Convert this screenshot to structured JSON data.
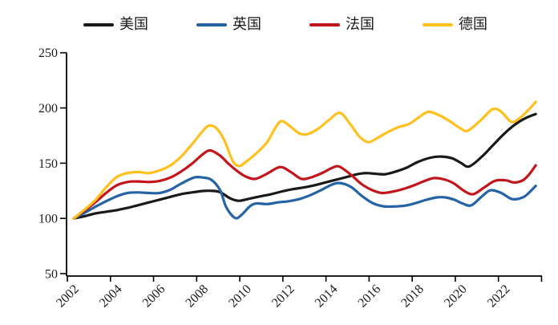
{
  "chart_data": {
    "type": "line",
    "title": "",
    "grid": false,
    "legend_position": "top",
    "x_axis": {
      "tick_labels": [
        "2002",
        "2004",
        "2006",
        "2008",
        "2010",
        "2012",
        "2014",
        "2016",
        "2018",
        "2020",
        "2022"
      ],
      "range": [
        2002,
        2024
      ]
    },
    "y_axis": {
      "ticks": [
        50,
        100,
        150,
        200,
        250
      ],
      "range": [
        50,
        250
      ]
    },
    "series": [
      {
        "key": "us",
        "name": "美国",
        "color": "#1a1a1a",
        "points": [
          [
            2002,
            100
          ],
          [
            2002.5,
            102
          ],
          [
            2003,
            104.5
          ],
          [
            2003.5,
            106
          ],
          [
            2004,
            107.5
          ],
          [
            2004.5,
            109.5
          ],
          [
            2005,
            112
          ],
          [
            2005.5,
            114.5
          ],
          [
            2006,
            117
          ],
          [
            2006.5,
            119.5
          ],
          [
            2007,
            122
          ],
          [
            2007.5,
            123.5
          ],
          [
            2008,
            124.8
          ],
          [
            2008.4,
            125
          ],
          [
            2008.8,
            123.8
          ],
          [
            2009.3,
            118
          ],
          [
            2009.7,
            116
          ],
          [
            2010.2,
            118
          ],
          [
            2010.7,
            120
          ],
          [
            2011.2,
            122
          ],
          [
            2011.7,
            124.5
          ],
          [
            2012.2,
            126.5
          ],
          [
            2012.7,
            128
          ],
          [
            2013.2,
            130
          ],
          [
            2013.7,
            132.5
          ],
          [
            2014.2,
            135
          ],
          [
            2014.7,
            137.5
          ],
          [
            2015.2,
            140
          ],
          [
            2015.6,
            141
          ],
          [
            2016.1,
            140.3
          ],
          [
            2016.5,
            140
          ],
          [
            2017,
            142.5
          ],
          [
            2017.5,
            146
          ],
          [
            2018,
            151
          ],
          [
            2018.6,
            155
          ],
          [
            2019.1,
            156
          ],
          [
            2019.6,
            154.5
          ],
          [
            2020,
            150.5
          ],
          [
            2020.4,
            147
          ],
          [
            2021,
            156
          ],
          [
            2021.5,
            166
          ],
          [
            2022,
            176
          ],
          [
            2022.5,
            184.5
          ],
          [
            2023,
            190.5
          ],
          [
            2023.5,
            194.5
          ]
        ]
      },
      {
        "key": "uk",
        "name": "英国",
        "color": "#2563a7",
        "points": [
          [
            2002,
            100
          ],
          [
            2002.5,
            105
          ],
          [
            2003,
            110.5
          ],
          [
            2003.5,
            115.5
          ],
          [
            2004,
            120
          ],
          [
            2004.5,
            123
          ],
          [
            2005,
            123.5
          ],
          [
            2005.5,
            123
          ],
          [
            2006,
            123
          ],
          [
            2006.5,
            126
          ],
          [
            2007,
            131.5
          ],
          [
            2007.6,
            137
          ],
          [
            2008,
            137
          ],
          [
            2008.4,
            135
          ],
          [
            2008.8,
            126
          ],
          [
            2009.1,
            110
          ],
          [
            2009.5,
            100.5
          ],
          [
            2009.8,
            103
          ],
          [
            2010.2,
            111
          ],
          [
            2010.5,
            113.5
          ],
          [
            2011,
            113
          ],
          [
            2011.5,
            114.5
          ],
          [
            2012,
            115.5
          ],
          [
            2012.5,
            117.5
          ],
          [
            2013,
            121
          ],
          [
            2013.5,
            125.5
          ],
          [
            2014,
            130.5
          ],
          [
            2014.4,
            132
          ],
          [
            2014.9,
            128.5
          ],
          [
            2015.4,
            120.5
          ],
          [
            2015.9,
            114
          ],
          [
            2016.4,
            111
          ],
          [
            2016.9,
            110.8
          ],
          [
            2017.4,
            111.5
          ],
          [
            2017.9,
            113.8
          ],
          [
            2018.4,
            116.8
          ],
          [
            2018.9,
            119
          ],
          [
            2019.3,
            119
          ],
          [
            2019.7,
            117
          ],
          [
            2020.1,
            113.5
          ],
          [
            2020.5,
            111.8
          ],
          [
            2021,
            120
          ],
          [
            2021.4,
            125.5
          ],
          [
            2021.9,
            123
          ],
          [
            2022.4,
            117.5
          ],
          [
            2022.9,
            119
          ],
          [
            2023.2,
            123.5
          ],
          [
            2023.5,
            129.5
          ]
        ]
      },
      {
        "key": "france",
        "name": "法国",
        "color": "#c3161c",
        "points": [
          [
            2002,
            100
          ],
          [
            2002.5,
            107
          ],
          [
            2003,
            114.5
          ],
          [
            2003.5,
            123
          ],
          [
            2004,
            130
          ],
          [
            2004.5,
            133
          ],
          [
            2005,
            133.5
          ],
          [
            2005.5,
            133
          ],
          [
            2006,
            134
          ],
          [
            2006.5,
            137
          ],
          [
            2007,
            142.5
          ],
          [
            2007.5,
            149.5
          ],
          [
            2008,
            158
          ],
          [
            2008.35,
            161.5
          ],
          [
            2008.8,
            157
          ],
          [
            2009.2,
            149.5
          ],
          [
            2009.6,
            143
          ],
          [
            2010,
            138
          ],
          [
            2010.45,
            135.8
          ],
          [
            2011,
            140.5
          ],
          [
            2011.6,
            146.5
          ],
          [
            2012.1,
            142
          ],
          [
            2012.6,
            135.8
          ],
          [
            2013.1,
            137.5
          ],
          [
            2013.6,
            141.5
          ],
          [
            2014,
            145.5
          ],
          [
            2014.35,
            147
          ],
          [
            2014.9,
            139.5
          ],
          [
            2015.4,
            131
          ],
          [
            2015.9,
            125.5
          ],
          [
            2016.35,
            123
          ],
          [
            2016.9,
            124.5
          ],
          [
            2017.4,
            127
          ],
          [
            2017.9,
            130.5
          ],
          [
            2018.4,
            134.5
          ],
          [
            2018.8,
            136.5
          ],
          [
            2019.3,
            135
          ],
          [
            2019.7,
            131.5
          ],
          [
            2020.2,
            124.5
          ],
          [
            2020.6,
            122
          ],
          [
            2021.1,
            128
          ],
          [
            2021.6,
            134
          ],
          [
            2022.1,
            134.5
          ],
          [
            2022.5,
            132.5
          ],
          [
            2022.9,
            134.5
          ],
          [
            2023.2,
            140
          ],
          [
            2023.5,
            148
          ]
        ]
      },
      {
        "key": "germany",
        "name": "德国",
        "color": "#ffc01e",
        "points": [
          [
            2002,
            100
          ],
          [
            2002.5,
            108
          ],
          [
            2003,
            116.5
          ],
          [
            2003.5,
            128
          ],
          [
            2004,
            137.5
          ],
          [
            2004.5,
            141
          ],
          [
            2005,
            142
          ],
          [
            2005.5,
            141
          ],
          [
            2006,
            143.5
          ],
          [
            2006.5,
            148
          ],
          [
            2007,
            156
          ],
          [
            2007.5,
            167
          ],
          [
            2008,
            179
          ],
          [
            2008.3,
            184
          ],
          [
            2008.65,
            181.5
          ],
          [
            2009,
            171
          ],
          [
            2009.4,
            152
          ],
          [
            2009.7,
            147.5
          ],
          [
            2010,
            151
          ],
          [
            2010.5,
            159
          ],
          [
            2011,
            169
          ],
          [
            2011.35,
            181
          ],
          [
            2011.65,
            188
          ],
          [
            2012,
            184.5
          ],
          [
            2012.5,
            177
          ],
          [
            2012.9,
            176.5
          ],
          [
            2013.4,
            181.5
          ],
          [
            2013.9,
            189.5
          ],
          [
            2014.4,
            195.5
          ],
          [
            2014.9,
            184.5
          ],
          [
            2015.3,
            174
          ],
          [
            2015.7,
            169
          ],
          [
            2016.1,
            172.5
          ],
          [
            2016.6,
            178
          ],
          [
            2017.1,
            182.5
          ],
          [
            2017.6,
            185.5
          ],
          [
            2018.1,
            192
          ],
          [
            2018.5,
            196.5
          ],
          [
            2019,
            193.5
          ],
          [
            2019.5,
            188
          ],
          [
            2020,
            181.5
          ],
          [
            2020.35,
            179.5
          ],
          [
            2021,
            190
          ],
          [
            2021.5,
            199
          ],
          [
            2021.9,
            196.5
          ],
          [
            2022.35,
            187.5
          ],
          [
            2022.7,
            190
          ],
          [
            2023.1,
            197
          ],
          [
            2023.5,
            205.5
          ]
        ]
      }
    ]
  }
}
